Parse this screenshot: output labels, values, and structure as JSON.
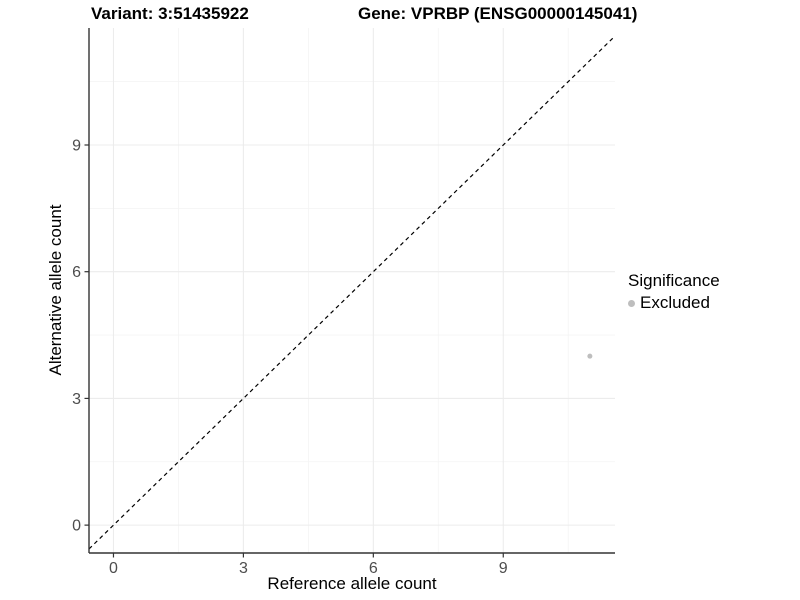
{
  "header": {
    "variant_title": "Variant: 3:51435922",
    "gene_title": "Gene: VPRBP (ENSG00000145041)"
  },
  "chart_data": {
    "type": "scatter",
    "title": "Variant: 3:51435922    Gene: VPRBP (ENSG00000145041)",
    "xlabel": "Reference allele count",
    "ylabel": "Alternative allele count",
    "xlim": [
      -0.565,
      11.58
    ],
    "ylim": [
      -0.66,
      11.77
    ],
    "x_ticks": [
      0,
      3,
      6,
      9
    ],
    "y_ticks": [
      0,
      3,
      6,
      9
    ],
    "minor_ticks": [
      1.5,
      4.5,
      7.5,
      10.5
    ],
    "grid": true,
    "reference_line": {
      "type": "identity",
      "style": "dashed",
      "color": "#000000"
    },
    "series": [
      {
        "name": "Excluded",
        "color": "#bebebe",
        "point_radius": 2.5,
        "points": [
          {
            "x": 11,
            "y": 4
          }
        ]
      }
    ],
    "legend": {
      "title": "Significance",
      "position": "right",
      "items": [
        {
          "label": "Excluded",
          "color": "#bebebe"
        }
      ]
    },
    "style": {
      "background": "#ffffff",
      "grid_major": "#ececec",
      "grid_minor": "#f4f4f4",
      "axis_line": "#333333",
      "tick_mark": "#333333",
      "tick_label": "#4d4d4d"
    }
  }
}
